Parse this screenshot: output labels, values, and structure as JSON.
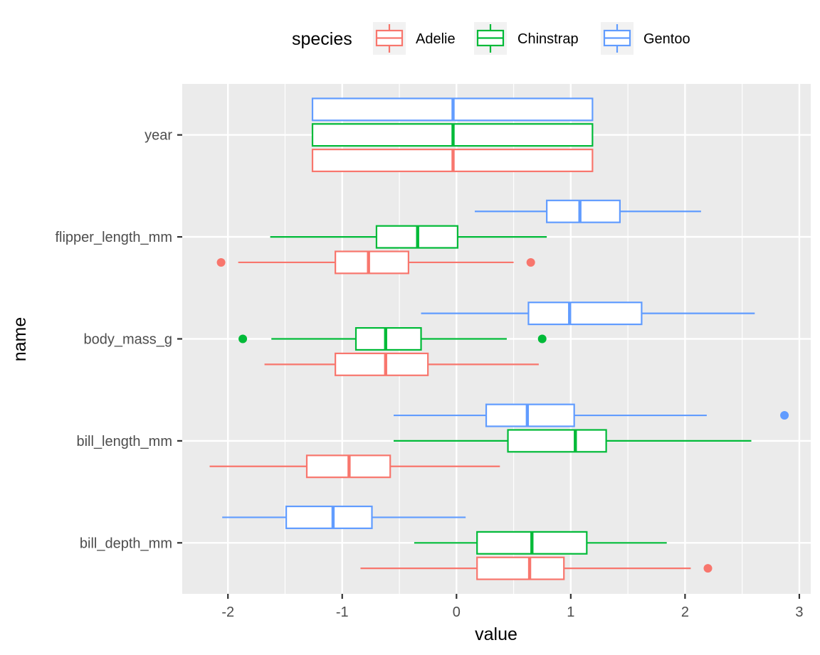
{
  "chart_data": {
    "type": "boxplot",
    "orientation": "horizontal",
    "xlabel": "value",
    "ylabel": "name",
    "xlim": [
      -2.4,
      3.1
    ],
    "x_ticks": [
      -2,
      -1,
      0,
      1,
      2,
      3
    ],
    "x_tick_labels": [
      "-2",
      "-1",
      "0",
      "1",
      "2",
      "3"
    ],
    "categories": [
      "bill_depth_mm",
      "bill_length_mm",
      "body_mass_g",
      "flipper_length_mm",
      "year"
    ],
    "grid": true,
    "legend": {
      "title": "species",
      "position": "top",
      "entries": [
        "Adelie",
        "Chinstrap",
        "Gentoo"
      ]
    },
    "colors": {
      "Adelie": "#F8766D",
      "Chinstrap": "#00BA38",
      "Gentoo": "#619CFF"
    },
    "panel_background": "#EBEBEB",
    "series": [
      {
        "name": "Adelie",
        "boxes": [
          {
            "category": "bill_depth_mm",
            "whisker_low": -0.84,
            "q1": 0.18,
            "median": 0.64,
            "q3": 0.94,
            "whisker_high": 2.05,
            "outliers": [
              2.2
            ]
          },
          {
            "category": "bill_length_mm",
            "whisker_low": -2.16,
            "q1": -1.31,
            "median": -0.94,
            "q3": -0.58,
            "whisker_high": 0.38,
            "outliers": []
          },
          {
            "category": "body_mass_g",
            "whisker_low": -1.68,
            "q1": -1.06,
            "median": -0.62,
            "q3": -0.25,
            "whisker_high": 0.72,
            "outliers": []
          },
          {
            "category": "flipper_length_mm",
            "whisker_low": -1.91,
            "q1": -1.06,
            "median": -0.77,
            "q3": -0.42,
            "whisker_high": 0.5,
            "outliers": [
              -2.06,
              0.65
            ]
          },
          {
            "category": "year",
            "whisker_low": -1.26,
            "q1": -1.26,
            "median": -0.03,
            "q3": 1.19,
            "whisker_high": 1.19,
            "outliers": []
          }
        ]
      },
      {
        "name": "Chinstrap",
        "boxes": [
          {
            "category": "bill_depth_mm",
            "whisker_low": -0.37,
            "q1": 0.18,
            "median": 0.66,
            "q3": 1.14,
            "whisker_high": 1.84,
            "outliers": []
          },
          {
            "category": "bill_length_mm",
            "whisker_low": -0.55,
            "q1": 0.45,
            "median": 1.04,
            "q3": 1.31,
            "whisker_high": 2.58,
            "outliers": []
          },
          {
            "category": "body_mass_g",
            "whisker_low": -1.62,
            "q1": -0.88,
            "median": -0.62,
            "q3": -0.31,
            "whisker_high": 0.44,
            "outliers": [
              -1.87,
              0.75
            ]
          },
          {
            "category": "flipper_length_mm",
            "whisker_low": -1.63,
            "q1": -0.7,
            "median": -0.34,
            "q3": 0.01,
            "whisker_high": 0.79,
            "outliers": []
          },
          {
            "category": "year",
            "whisker_low": -1.26,
            "q1": -1.26,
            "median": -0.03,
            "q3": 1.19,
            "whisker_high": 1.19,
            "outliers": []
          }
        ]
      },
      {
        "name": "Gentoo",
        "boxes": [
          {
            "category": "bill_depth_mm",
            "whisker_low": -2.05,
            "q1": -1.49,
            "median": -1.08,
            "q3": -0.74,
            "whisker_high": 0.08,
            "outliers": []
          },
          {
            "category": "bill_length_mm",
            "whisker_low": -0.55,
            "q1": 0.26,
            "median": 0.62,
            "q3": 1.03,
            "whisker_high": 2.19,
            "outliers": [
              2.87
            ]
          },
          {
            "category": "body_mass_g",
            "whisker_low": -0.31,
            "q1": 0.63,
            "median": 0.99,
            "q3": 1.62,
            "whisker_high": 2.61,
            "outliers": []
          },
          {
            "category": "flipper_length_mm",
            "whisker_low": 0.16,
            "q1": 0.79,
            "median": 1.08,
            "q3": 1.43,
            "whisker_high": 2.14,
            "outliers": []
          },
          {
            "category": "year",
            "whisker_low": -1.26,
            "q1": -1.26,
            "median": -0.03,
            "q3": 1.19,
            "whisker_high": 1.19,
            "outliers": []
          }
        ]
      }
    ]
  }
}
